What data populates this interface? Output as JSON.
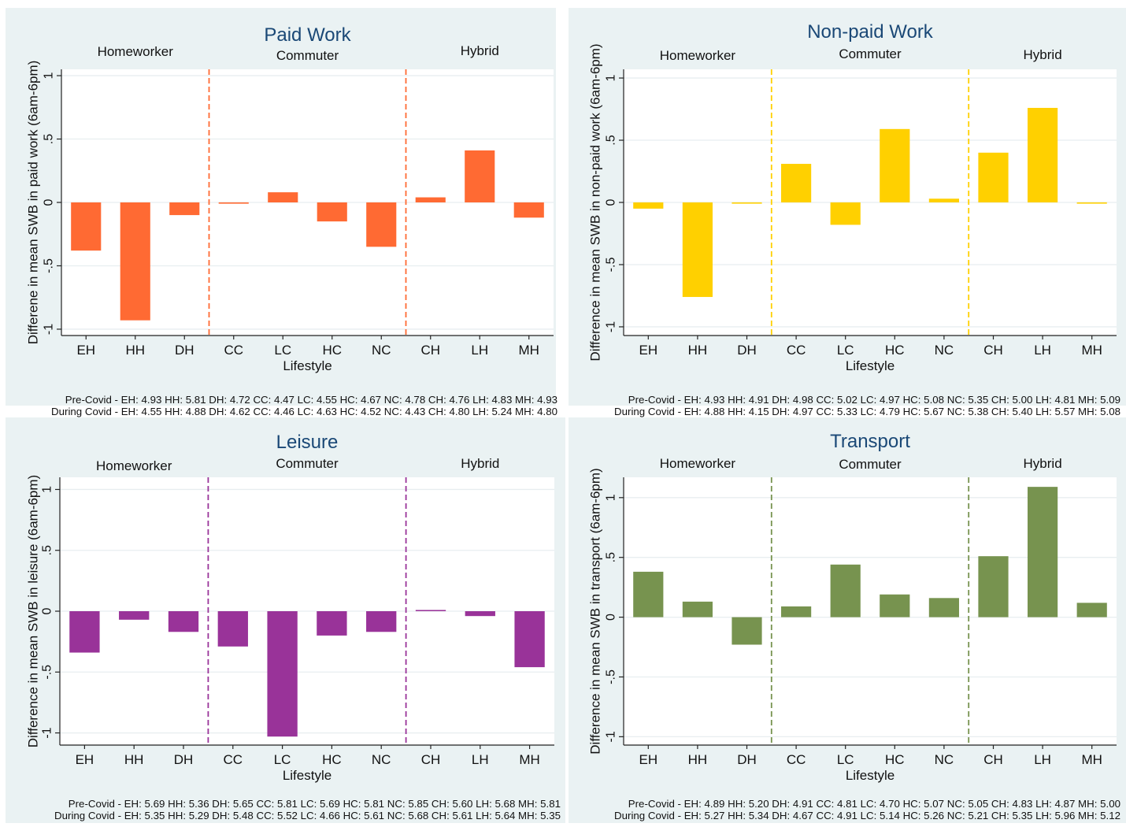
{
  "chart_data": [
    {
      "type": "bar",
      "title": "Paid Work",
      "xlabel": "Lifestyle",
      "ylabel": "Differene in mean SWB in paid work (6am-6pm)",
      "ylim": [
        -1.05,
        1.05
      ],
      "yticks": [
        {
          "value": 1,
          "label": "1"
        },
        {
          "value": 0.5,
          "label": ".5"
        },
        {
          "value": 0,
          "label": "0"
        },
        {
          "value": -0.5,
          "label": "-.5"
        },
        {
          "value": -1,
          "label": "-1"
        }
      ],
      "grid": true,
      "groups": [
        "Homeworker",
        "Commuter",
        "Hybrid"
      ],
      "categories": [
        "EH",
        "HH",
        "DH",
        "CC",
        "LC",
        "HC",
        "NC",
        "CH",
        "LH",
        "MH"
      ],
      "values": [
        -0.38,
        -0.93,
        -0.1,
        -0.01,
        0.08,
        -0.15,
        -0.35,
        0.04,
        0.41,
        -0.12
      ],
      "color": "#ff6a33",
      "pre_covid": "Pre-Covid - EH: 4.93 HH: 5.81 DH: 4.72 CC: 4.47 LC: 4.55 HC: 4.67 NC: 4.78 CH: 4.76 LH: 4.83 MH: 4.93",
      "during_covid": "During Covid - EH: 4.55 HH: 4.88 DH: 4.62 CC: 4.46 LC: 4.63 HC: 4.52 NC: 4.43 CH: 4.80 LH: 5.24 MH: 4.80"
    },
    {
      "type": "bar",
      "title": "Non-paid Work",
      "xlabel": "Lifestyle",
      "ylabel": "Difference in mean SWB in non-paid work (6am-6pm)",
      "ylim": [
        -1.07,
        1.07
      ],
      "yticks": [
        {
          "value": 1,
          "label": "1"
        },
        {
          "value": 0.5,
          "label": ".5"
        },
        {
          "value": 0,
          "label": "0"
        },
        {
          "value": -0.5,
          "label": "-.5"
        },
        {
          "value": -1,
          "label": "-1"
        }
      ],
      "grid": true,
      "groups": [
        "Homeworker",
        "Commuter",
        "Hybrid"
      ],
      "categories": [
        "EH",
        "HH",
        "DH",
        "CC",
        "LC",
        "HC",
        "NC",
        "CH",
        "LH",
        "MH"
      ],
      "values": [
        -0.05,
        -0.76,
        -0.01,
        0.31,
        -0.18,
        0.59,
        0.03,
        0.4,
        0.76,
        -0.01
      ],
      "color": "#ffd000",
      "pre_covid": "Pre-Covid - EH: 4.93 HH: 4.91 DH: 4.98 CC: 5.02 LC: 4.97 HC: 5.08 NC: 5.35 CH: 5.00 LH: 4.81 MH: 5.09",
      "during_covid": "During Covid - EH: 4.88 HH: 4.15 DH: 4.97 CC: 5.33 LC: 4.79 HC: 5.67 NC: 5.38 CH: 5.40 LH: 5.57 MH: 5.08"
    },
    {
      "type": "bar",
      "title": "Leisure",
      "xlabel": "Lifestyle",
      "ylabel": "Difference in mean SWB in leisure (6am-6pm)",
      "ylim": [
        -1.1,
        1.1
      ],
      "yticks": [
        {
          "value": 1,
          "label": "1"
        },
        {
          "value": 0.5,
          "label": ".5"
        },
        {
          "value": 0,
          "label": "0"
        },
        {
          "value": -0.5,
          "label": "-.5"
        },
        {
          "value": -1,
          "label": "-1"
        }
      ],
      "grid": true,
      "groups": [
        "Homeworker",
        "Commuter",
        "Hybrid"
      ],
      "categories": [
        "EH",
        "HH",
        "DH",
        "CC",
        "LC",
        "HC",
        "NC",
        "CH",
        "LH",
        "MH"
      ],
      "values": [
        -0.34,
        -0.07,
        -0.17,
        -0.29,
        -1.03,
        -0.2,
        -0.17,
        0.01,
        -0.04,
        -0.46
      ],
      "color": "#993399",
      "pre_covid": "Pre-Covid - EH: 5.69 HH: 5.36 DH: 5.65 CC: 5.81 LC: 5.69 HC: 5.81 NC: 5.85 CH: 5.60 LH: 5.68 MH: 5.81",
      "during_covid": "During Covid - EH: 5.35 HH: 5.29 DH: 5.48 CC: 5.52 LC: 4.66 HC: 5.61 NC: 5.68 CH: 5.61 LH: 5.64 MH: 5.35"
    },
    {
      "type": "bar",
      "title": "Transport",
      "xlabel": "Lifestyle",
      "ylabel": "Difference in mean SWB in transport (6am-6pm)",
      "ylim": [
        -1.07,
        1.17
      ],
      "yticks": [
        {
          "value": 1,
          "label": "1"
        },
        {
          "value": 0.5,
          "label": ".5"
        },
        {
          "value": 0,
          "label": "0"
        },
        {
          "value": -0.5,
          "label": "-.5"
        },
        {
          "value": -1,
          "label": "-1"
        }
      ],
      "grid": true,
      "groups": [
        "Homeworker",
        "Commuter",
        "Hybrid"
      ],
      "categories": [
        "EH",
        "HH",
        "DH",
        "CC",
        "LC",
        "HC",
        "NC",
        "CH",
        "LH",
        "MH"
      ],
      "values": [
        0.38,
        0.13,
        -0.23,
        0.09,
        0.44,
        0.19,
        0.16,
        0.51,
        1.09,
        0.12
      ],
      "color": "#77934f",
      "pre_covid": "Pre-Covid - EH: 4.89 HH: 5.20 DH: 4.91 CC: 4.81 LC: 4.70 HC: 5.07 NC: 5.05 CH: 4.83 LH: 4.87 MH: 5.00",
      "during_covid": "During Covid - EH: 5.27 HH: 5.34 DH: 4.67 CC: 4.91 LC: 5.14 HC: 5.26 NC: 5.21 CH: 5.35 LH: 5.96 MH: 5.12"
    }
  ],
  "colors": {
    "frame_bg": "#eaf2f3",
    "plot_bg": "#ffffff",
    "grid": "#e8eef0",
    "title": "#1a4876",
    "text": "#111111"
  }
}
